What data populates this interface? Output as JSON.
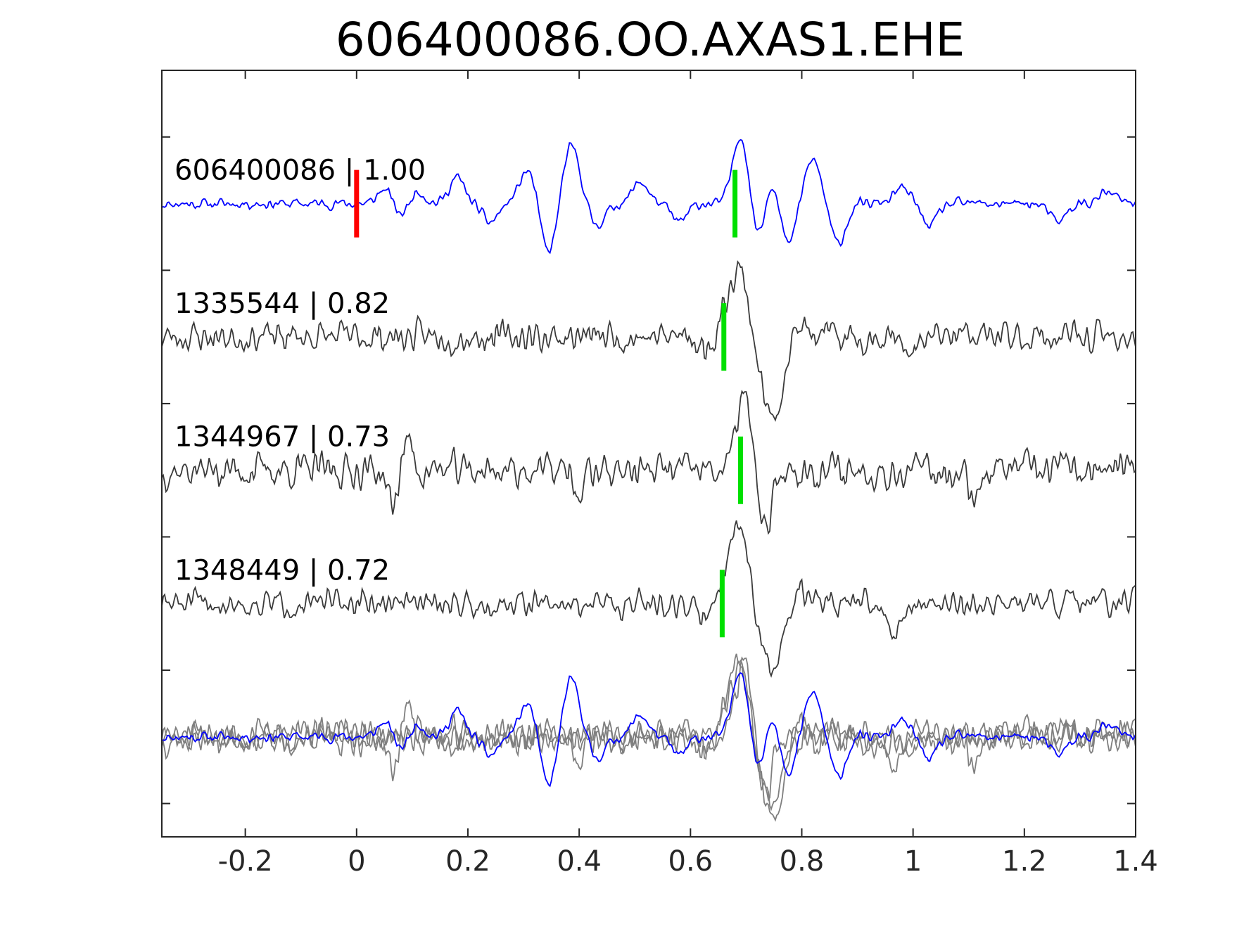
{
  "chart_data": {
    "type": "line",
    "title": "606400086.OO.AXAS1.EHE",
    "xlabel": "",
    "ylabel": "",
    "xlim": [
      -0.35,
      1.4
    ],
    "x_ticks": [
      -0.2,
      0,
      0.2,
      0.4,
      0.6,
      0.8,
      1,
      1.2,
      1.4
    ],
    "x_tick_labels": [
      "-0.2",
      "0",
      "0.2",
      "0.4",
      "0.6",
      "0.8",
      "1",
      "1.2",
      "1.4"
    ],
    "grid": false,
    "legend": "none",
    "panels": 5,
    "traces": [
      {
        "label": "606400086 | 1.00",
        "color": "#0000ff",
        "panel": 1,
        "picks": [
          {
            "x": 0.0,
            "color": "#ff0000"
          },
          {
            "x": 0.68,
            "color": "#00e000"
          }
        ],
        "events": [
          {
            "x": 0.05,
            "a": 0.2,
            "w": 0.012
          },
          {
            "x": 0.08,
            "a": -0.15,
            "w": 0.012
          },
          {
            "x": 0.11,
            "a": 0.18,
            "w": 0.012
          },
          {
            "x": 0.18,
            "a": 0.35,
            "w": 0.014
          },
          {
            "x": 0.24,
            "a": -0.25,
            "w": 0.014
          },
          {
            "x": 0.31,
            "a": 0.5,
            "w": 0.016
          },
          {
            "x": 0.345,
            "a": -0.75,
            "w": 0.016
          },
          {
            "x": 0.385,
            "a": 0.8,
            "w": 0.017
          },
          {
            "x": 0.43,
            "a": -0.3,
            "w": 0.016
          },
          {
            "x": 0.51,
            "a": 0.3,
            "w": 0.014
          },
          {
            "x": 0.58,
            "a": -0.25,
            "w": 0.014
          },
          {
            "x": 0.69,
            "a": 0.95,
            "w": 0.014
          },
          {
            "x": 0.72,
            "a": -0.45,
            "w": 0.012
          },
          {
            "x": 0.75,
            "a": 0.35,
            "w": 0.012
          },
          {
            "x": 0.775,
            "a": -0.6,
            "w": 0.013
          },
          {
            "x": 0.82,
            "a": 0.6,
            "w": 0.015
          },
          {
            "x": 0.865,
            "a": -0.55,
            "w": 0.014
          },
          {
            "x": 0.98,
            "a": 0.2,
            "w": 0.016
          },
          {
            "x": 1.03,
            "a": -0.3,
            "w": 0.014
          },
          {
            "x": 1.26,
            "a": -0.25,
            "w": 0.015
          },
          {
            "x": 1.35,
            "a": 0.15,
            "w": 0.015
          }
        ],
        "noise": 0.05,
        "seed": 11
      },
      {
        "label": "1335544 | 0.82",
        "color": "#3a3a3a",
        "panel": 2,
        "picks": [
          {
            "x": 0.66,
            "color": "#00e000"
          }
        ],
        "events": [
          {
            "x": 0.63,
            "a": -0.2,
            "w": 0.012
          },
          {
            "x": 0.685,
            "a": 0.95,
            "w": 0.02
          },
          {
            "x": 0.745,
            "a": -1.1,
            "w": 0.02
          },
          {
            "x": 0.79,
            "a": 0.15,
            "w": 0.014
          },
          {
            "x": 1.0,
            "a": -0.25,
            "w": 0.012
          }
        ],
        "noise": 0.15,
        "seed": 23
      },
      {
        "label": "1344967 | 0.73",
        "color": "#3a3a3a",
        "panel": 3,
        "picks": [
          {
            "x": 0.69,
            "color": "#00e000"
          }
        ],
        "events": [
          {
            "x": 0.065,
            "a": -0.55,
            "w": 0.008
          },
          {
            "x": 0.09,
            "a": 0.45,
            "w": 0.008
          },
          {
            "x": 0.4,
            "a": -0.4,
            "w": 0.008
          },
          {
            "x": 0.695,
            "a": 1.0,
            "w": 0.013
          },
          {
            "x": 0.735,
            "a": -0.85,
            "w": 0.012
          },
          {
            "x": 1.11,
            "a": -0.35,
            "w": 0.01
          }
        ],
        "noise": 0.17,
        "seed": 37
      },
      {
        "label": "1348449 | 0.72",
        "color": "#3a3a3a",
        "panel": 4,
        "picks": [
          {
            "x": 0.657,
            "color": "#00e000"
          }
        ],
        "events": [
          {
            "x": 0.62,
            "a": -0.2,
            "w": 0.012
          },
          {
            "x": 0.685,
            "a": 1.05,
            "w": 0.02
          },
          {
            "x": 0.745,
            "a": -0.95,
            "w": 0.02
          },
          {
            "x": 0.8,
            "a": 0.2,
            "w": 0.016
          },
          {
            "x": 0.965,
            "a": -0.35,
            "w": 0.014
          }
        ],
        "noise": 0.13,
        "seed": 51
      }
    ],
    "overlay_panel": 5,
    "overlay_gray": "#7f7f7f",
    "overlay_blue": "#0000ff"
  }
}
